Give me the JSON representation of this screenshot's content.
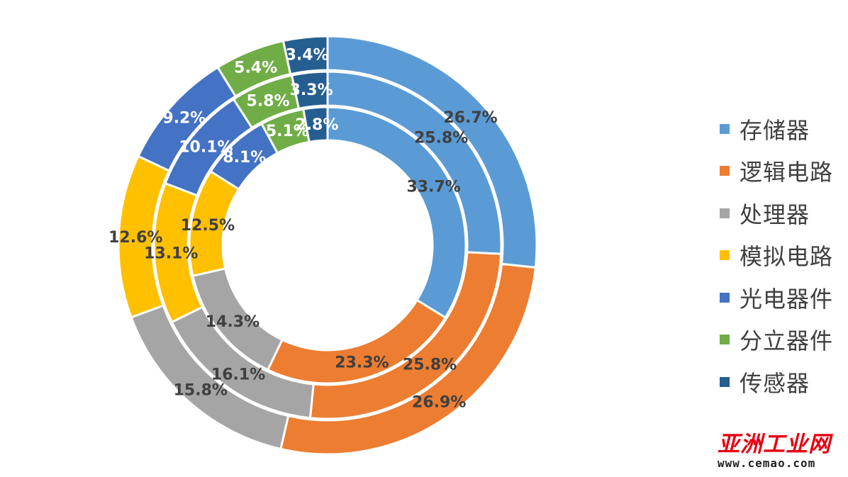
{
  "chart_data": {
    "type": "donut",
    "categories": [
      "存储器",
      "逻辑电路",
      "处理器",
      "模拟电路",
      "光电器件",
      "分立器件",
      "传感器"
    ],
    "colors": [
      "#5b9bd5",
      "#ed7d31",
      "#a5a5a5",
      "#ffc000",
      "#4472c4",
      "#70ad47",
      "#255e91"
    ],
    "series": [
      {
        "values": [
          33.7,
          23.3,
          14.3,
          12.5,
          8.1,
          5.1,
          2.8
        ],
        "labels": [
          "33.7%",
          "23.3%",
          "14.3%",
          "12.5%",
          "8.1%",
          "5.1%",
          "2.8%"
        ]
      },
      {
        "values": [
          25.8,
          25.8,
          16.1,
          13.1,
          10.1,
          5.8,
          3.3
        ],
        "labels": [
          "25.8%",
          "25.8%",
          "16.1%",
          "13.1%",
          "10.1%",
          "5.8%",
          "3.3%"
        ]
      },
      {
        "values": [
          26.7,
          26.9,
          15.8,
          12.6,
          9.2,
          5.4,
          3.4
        ],
        "labels": [
          "26.7%",
          "26.9%",
          "15.8%",
          "12.6%",
          "9.2%",
          "5.4%",
          "3.4%"
        ]
      }
    ],
    "legend_position": "right"
  },
  "legend": {
    "items": [
      {
        "label": "存储器",
        "color": "#5b9bd5"
      },
      {
        "label": "逻辑电路",
        "color": "#ed7d31"
      },
      {
        "label": "处理器",
        "color": "#a5a5a5"
      },
      {
        "label": "模拟电路",
        "color": "#ffc000"
      },
      {
        "label": "光电器件",
        "color": "#4472c4"
      },
      {
        "label": "分立器件",
        "color": "#70ad47"
      },
      {
        "label": "传感器",
        "color": "#255e91"
      }
    ]
  },
  "watermark": {
    "name": "亚洲工业网",
    "url": "www.cemao.com"
  }
}
